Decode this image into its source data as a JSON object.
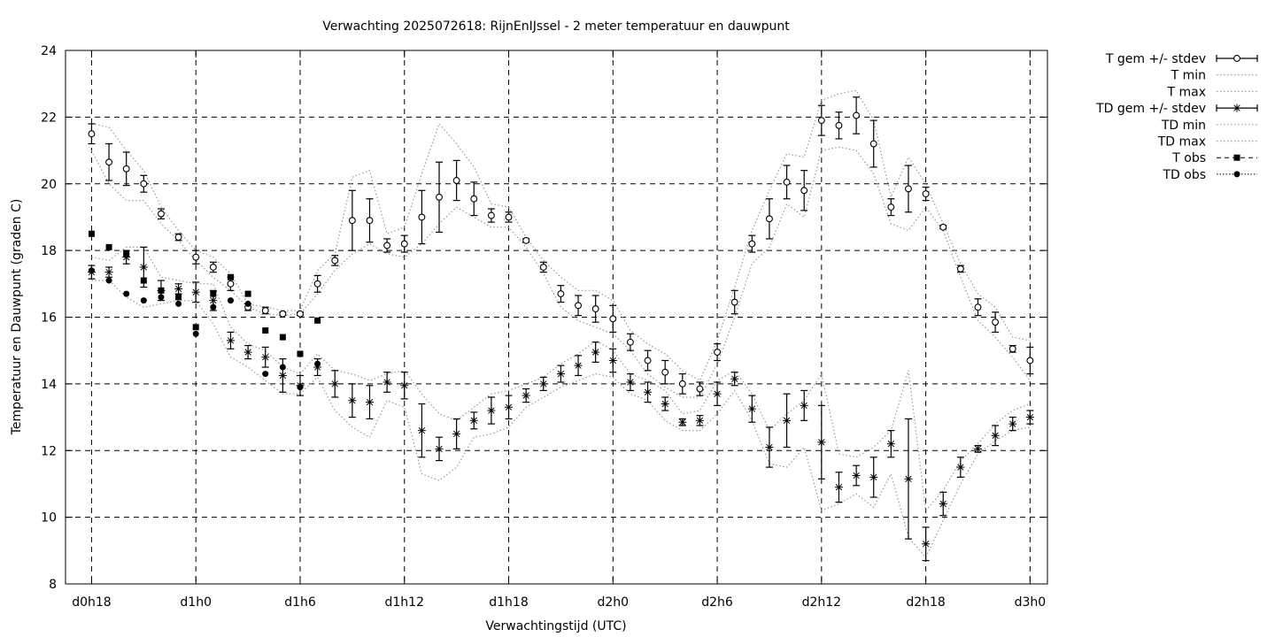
{
  "chart_data": {
    "type": "line",
    "title": "Verwachting 2025072618: RijnEnIJssel - 2 meter temperatuur en dauwpunt",
    "xlabel": "Verwachtingstijd (UTC)",
    "ylabel": "Temperatuur en Dauwpunt (graden C)",
    "ylim": [
      8,
      24
    ],
    "yticks": [
      8,
      10,
      12,
      14,
      16,
      18,
      20,
      22,
      24
    ],
    "x_unit": "forecast hour",
    "xlim": [
      -1.5,
      55
    ],
    "xticks": [
      {
        "x": 0,
        "label": "d0h18"
      },
      {
        "x": 6,
        "label": "d1h0"
      },
      {
        "x": 12,
        "label": "d1h6"
      },
      {
        "x": 18,
        "label": "d1h12"
      },
      {
        "x": 24,
        "label": "d1h18"
      },
      {
        "x": 30,
        "label": "d2h0"
      },
      {
        "x": 36,
        "label": "d2h6"
      },
      {
        "x": 42,
        "label": "d2h12"
      },
      {
        "x": 48,
        "label": "d2h18"
      },
      {
        "x": 54,
        "label": "d3h0"
      }
    ],
    "grid": true,
    "legend_position": "right",
    "legend": [
      "T gem +/- stdev",
      "T min",
      "T max",
      "TD gem +/- stdev",
      "TD min",
      "TD max",
      "T obs",
      "TD obs"
    ],
    "x": [
      0,
      1,
      2,
      3,
      4,
      5,
      6,
      7,
      8,
      9,
      10,
      11,
      12,
      13,
      14,
      15,
      16,
      17,
      18,
      19,
      20,
      21,
      22,
      23,
      24,
      25,
      26,
      27,
      28,
      29,
      30,
      31,
      32,
      33,
      34,
      35,
      36,
      37,
      38,
      39,
      40,
      41,
      42,
      43,
      44,
      45,
      46,
      47,
      48,
      49,
      50,
      51,
      52,
      53,
      54
    ],
    "series": [
      {
        "name": "T gem +/- stdev",
        "values": [
          21.5,
          20.65,
          20.45,
          20.0,
          19.1,
          18.4,
          17.8,
          17.5,
          17.0,
          16.3,
          16.2,
          16.1,
          16.1,
          17.0,
          17.7,
          18.9,
          18.9,
          18.15,
          18.2,
          19.0,
          19.6,
          20.1,
          19.55,
          19.05,
          19.0,
          18.3,
          17.5,
          16.7,
          16.35,
          16.25,
          15.95,
          15.25,
          14.7,
          14.35,
          14.0,
          13.85,
          14.95,
          16.45,
          18.2,
          18.95,
          20.05,
          19.8,
          21.9,
          21.75,
          22.05,
          21.2,
          19.3,
          19.85,
          19.7,
          18.7,
          17.45,
          16.3,
          15.85,
          15.05,
          14.7
        ],
        "stdev": [
          0.3,
          0.55,
          0.5,
          0.25,
          0.15,
          0.1,
          0.2,
          0.15,
          0.2,
          0.1,
          0.1,
          0.05,
          0.05,
          0.25,
          0.15,
          0.9,
          0.65,
          0.2,
          0.25,
          0.8,
          1.05,
          0.6,
          0.5,
          0.2,
          0.15,
          0.05,
          0.15,
          0.25,
          0.3,
          0.4,
          0.4,
          0.25,
          0.3,
          0.35,
          0.3,
          0.2,
          0.25,
          0.35,
          0.25,
          0.6,
          0.5,
          0.6,
          0.45,
          0.4,
          0.55,
          0.7,
          0.25,
          0.7,
          0.2,
          0.05,
          0.1,
          0.25,
          0.3,
          0.1,
          0.4
        ]
      },
      {
        "name": "T min",
        "values": [
          21.0,
          20.0,
          19.5,
          19.5,
          18.8,
          18.3,
          17.7,
          17.2,
          16.8,
          16.3,
          16.1,
          16.05,
          16.1,
          16.7,
          17.4,
          17.9,
          18.2,
          17.9,
          17.8,
          18.2,
          18.8,
          19.3,
          19.0,
          18.7,
          18.7,
          18.1,
          17.3,
          16.3,
          15.9,
          15.7,
          15.5,
          15.0,
          14.3,
          13.9,
          13.6,
          13.6,
          14.6,
          16.0,
          17.6,
          18.1,
          19.4,
          19.0,
          21.0,
          21.1,
          21.0,
          20.3,
          18.8,
          18.6,
          19.3,
          18.6,
          17.2,
          15.9,
          15.4,
          14.8,
          14.1
        ]
      },
      {
        "name": "T max",
        "values": [
          21.8,
          21.7,
          21.0,
          20.4,
          19.3,
          18.6,
          18.0,
          17.8,
          17.3,
          16.4,
          16.3,
          16.2,
          16.2,
          17.4,
          17.9,
          20.2,
          20.4,
          18.5,
          18.7,
          20.3,
          21.8,
          21.2,
          20.5,
          19.4,
          19.3,
          18.4,
          17.7,
          17.2,
          16.8,
          16.8,
          16.5,
          15.6,
          15.2,
          14.9,
          14.4,
          14.1,
          15.3,
          16.9,
          18.6,
          19.8,
          20.9,
          20.8,
          22.5,
          22.7,
          22.8,
          21.9,
          19.6,
          20.8,
          20.0,
          18.8,
          17.6,
          16.7,
          16.3,
          15.4,
          15.3
        ]
      },
      {
        "name": "TD gem +/- stdev",
        "values": [
          17.35,
          17.35,
          17.8,
          17.5,
          16.8,
          16.85,
          16.75,
          16.5,
          15.3,
          14.95,
          14.8,
          14.25,
          13.95,
          14.5,
          14.0,
          13.5,
          13.45,
          14.05,
          13.95,
          12.6,
          12.05,
          12.5,
          12.9,
          13.2,
          13.3,
          13.65,
          14.0,
          14.3,
          14.55,
          14.95,
          14.7,
          14.05,
          13.75,
          13.4,
          12.85,
          12.9,
          13.7,
          14.15,
          13.25,
          12.1,
          12.9,
          13.35,
          12.25,
          10.9,
          11.25,
          11.2,
          12.2,
          11.15,
          9.2,
          10.4,
          11.5,
          12.05,
          12.45,
          12.8,
          13.0
        ],
        "stdev": [
          0.2,
          0.15,
          0.2,
          0.6,
          0.3,
          0.15,
          0.3,
          0.3,
          0.25,
          0.2,
          0.3,
          0.5,
          0.3,
          0.25,
          0.4,
          0.5,
          0.5,
          0.3,
          0.4,
          0.8,
          0.35,
          0.45,
          0.25,
          0.4,
          0.35,
          0.2,
          0.2,
          0.25,
          0.3,
          0.3,
          0.35,
          0.25,
          0.3,
          0.2,
          0.1,
          0.15,
          0.35,
          0.2,
          0.4,
          0.6,
          0.8,
          0.45,
          1.1,
          0.45,
          0.3,
          0.6,
          0.4,
          1.8,
          0.5,
          0.35,
          0.3,
          0.1,
          0.3,
          0.2,
          0.2
        ]
      },
      {
        "name": "TD min",
        "values": [
          17.1,
          17.1,
          16.6,
          16.3,
          16.4,
          16.5,
          16.5,
          15.8,
          14.8,
          14.5,
          14.1,
          13.7,
          13.7,
          14.2,
          13.2,
          12.7,
          12.4,
          13.5,
          13.3,
          11.3,
          11.1,
          11.5,
          12.4,
          12.5,
          12.7,
          13.3,
          13.6,
          13.9,
          14.1,
          14.3,
          14.2,
          13.7,
          13.5,
          12.9,
          12.6,
          12.6,
          13.1,
          13.8,
          12.9,
          11.6,
          11.5,
          12.1,
          10.2,
          10.4,
          10.7,
          10.3,
          11.3,
          9.4,
          8.8,
          9.9,
          11.0,
          11.9,
          12.3,
          12.6,
          12.7
        ]
      },
      {
        "name": "TD max",
        "values": [
          17.8,
          17.7,
          18.1,
          18.1,
          17.2,
          17.1,
          17.0,
          17.0,
          15.7,
          15.2,
          15.0,
          14.5,
          14.3,
          14.9,
          14.4,
          14.3,
          14.1,
          14.3,
          14.4,
          13.7,
          13.1,
          12.9,
          13.3,
          13.7,
          13.8,
          14.0,
          14.2,
          14.6,
          14.9,
          15.3,
          15.0,
          14.3,
          14.1,
          13.8,
          13.1,
          13.2,
          14.1,
          14.4,
          13.7,
          12.6,
          13.1,
          13.5,
          14.3,
          11.9,
          11.8,
          12.1,
          12.6,
          14.4,
          10.2,
          10.8,
          11.7,
          12.2,
          12.8,
          13.2,
          13.4
        ]
      },
      {
        "name": "T obs",
        "x": [
          0,
          1,
          2,
          3,
          4,
          5,
          6,
          7,
          8,
          9,
          10,
          11,
          12,
          13
        ],
        "values": [
          18.5,
          18.1,
          17.9,
          17.1,
          16.8,
          16.6,
          15.7,
          16.7,
          17.2,
          16.7,
          15.6,
          15.4,
          14.9,
          15.9
        ]
      },
      {
        "name": "TD obs",
        "x": [
          0,
          1,
          2,
          3,
          4,
          5,
          6,
          7,
          8,
          9,
          10,
          11,
          12,
          13
        ],
        "values": [
          17.4,
          17.1,
          16.7,
          16.5,
          16.6,
          16.4,
          15.5,
          16.3,
          16.5,
          16.4,
          14.3,
          14.5,
          13.9,
          14.6
        ]
      }
    ]
  }
}
